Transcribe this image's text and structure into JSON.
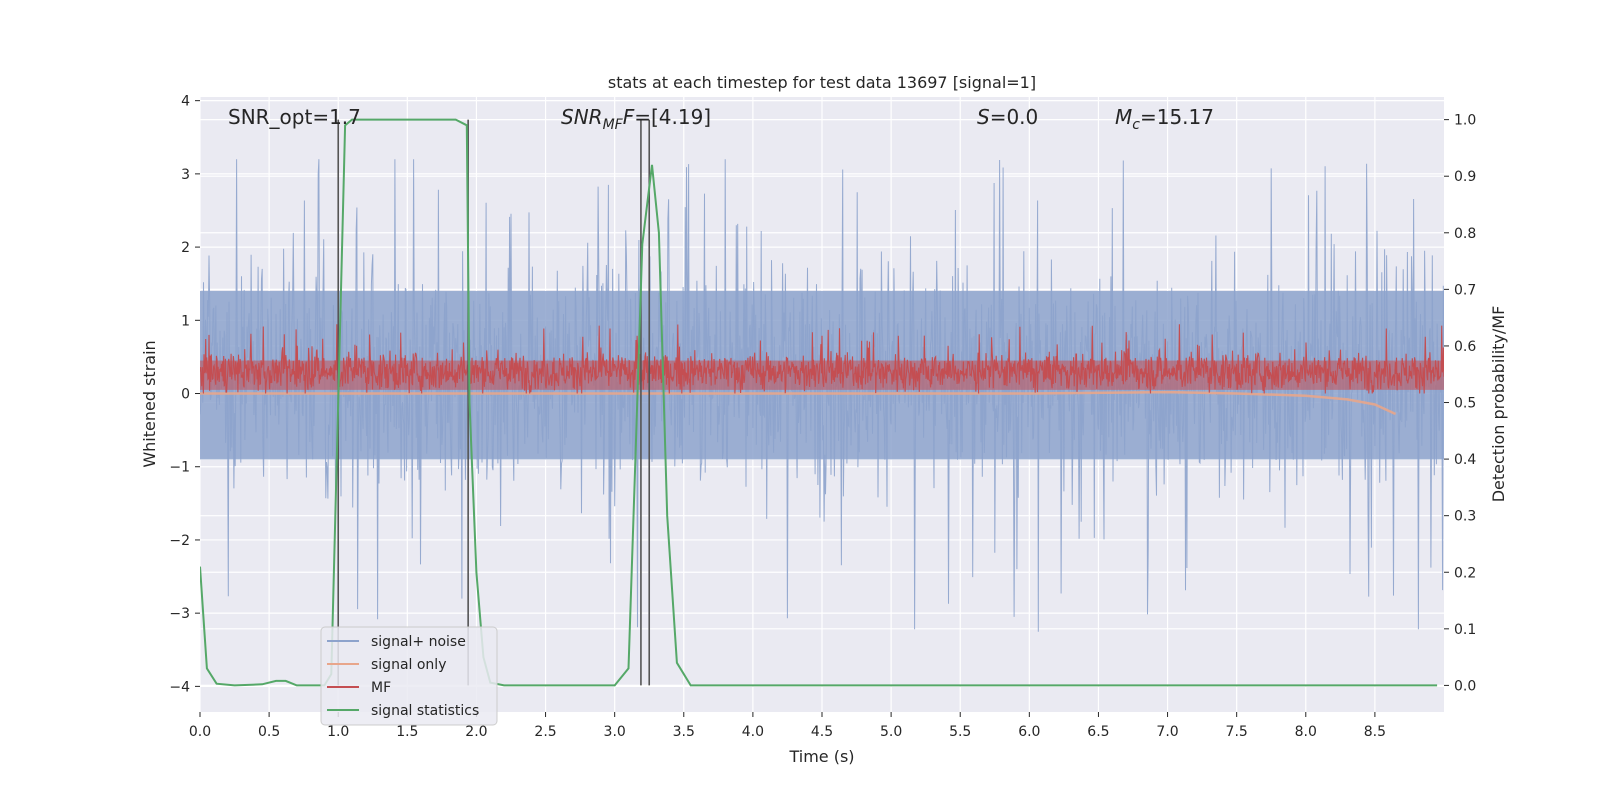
{
  "chart_data": {
    "type": "line",
    "title": "stats at each timestep for test data 13697 [signal=1]",
    "xlabel": "Time (s)",
    "ylabel_left": "Whitened strain",
    "ylabel_right": "Detection probability/MF",
    "xlim": [
      0.0,
      9.0
    ],
    "ylim_left": [
      -4.35,
      4.05
    ],
    "ylim_right": [
      -0.047,
      1.04
    ],
    "xticks": [
      "0.0",
      "0.5",
      "1.0",
      "1.5",
      "2.0",
      "2.5",
      "3.0",
      "3.5",
      "4.0",
      "4.5",
      "5.0",
      "5.5",
      "6.0",
      "6.5",
      "7.0",
      "7.5",
      "8.0",
      "8.5"
    ],
    "yticks_left": [
      "−4",
      "−3",
      "−2",
      "−1",
      "0",
      "1",
      "2",
      "3",
      "4"
    ],
    "yticks_right": [
      "0.0",
      "0.1",
      "0.2",
      "0.3",
      "0.4",
      "0.5",
      "0.6",
      "0.7",
      "0.8",
      "0.9",
      "1.0"
    ],
    "grid": true,
    "legend_position": "lower-left",
    "annotations": {
      "snr_opt": "SNR_opt=1.7",
      "snr_mf_main": "SNR",
      "snr_mf_sub": "MF",
      "snr_mf_tail": "=[4.19]",
      "s_main": "S",
      "s_tail": "=0.0",
      "mc_main": "M",
      "mc_sub": "c",
      "mc_tail": "=15.17"
    },
    "vertical_lines_x": [
      1.0,
      1.94,
      3.19,
      3.25
    ],
    "series": [
      {
        "name": "signal+ noise",
        "color": "#8da3cc",
        "axis": "left",
        "description_range": [
          -3.7,
          3.3
        ],
        "envelope": {
          "typical_upper": 1.4,
          "typical_lower": -0.9,
          "peak_upper": 3.2,
          "peak_lower": -3.7
        }
      },
      {
        "name": "signal only",
        "color": "#e8a68b",
        "axis": "left",
        "points": [
          [
            0.0,
            0.0
          ],
          [
            6.0,
            0.0
          ],
          [
            7.0,
            0.02
          ],
          [
            7.5,
            0.0
          ],
          [
            8.0,
            -0.03
          ],
          [
            8.3,
            -0.08
          ],
          [
            8.5,
            -0.15
          ],
          [
            8.65,
            -0.28
          ]
        ]
      },
      {
        "name": "MF",
        "color": "#c44e52",
        "axis": "left",
        "envelope": {
          "typical_upper": 0.6,
          "typical_lower": 0.0,
          "peak_upper": 1.0
        }
      },
      {
        "name": "signal statistics",
        "color": "#55a868",
        "axis": "right",
        "points": [
          [
            0.0,
            0.21
          ],
          [
            0.05,
            0.03
          ],
          [
            0.12,
            0.003
          ],
          [
            0.25,
            0.0
          ],
          [
            0.45,
            0.002
          ],
          [
            0.55,
            0.008
          ],
          [
            0.62,
            0.008
          ],
          [
            0.7,
            0.0
          ],
          [
            0.9,
            0.0
          ],
          [
            0.95,
            0.02
          ],
          [
            1.0,
            0.5
          ],
          [
            1.05,
            0.99
          ],
          [
            1.1,
            1.0
          ],
          [
            1.85,
            1.0
          ],
          [
            1.93,
            0.99
          ],
          [
            1.95,
            0.5
          ],
          [
            2.0,
            0.2
          ],
          [
            2.05,
            0.05
          ],
          [
            2.1,
            0.005
          ],
          [
            2.2,
            0.0
          ],
          [
            2.5,
            0.0
          ],
          [
            2.7,
            0.0
          ],
          [
            3.0,
            0.0
          ],
          [
            3.1,
            0.03
          ],
          [
            3.15,
            0.4
          ],
          [
            3.2,
            0.78
          ],
          [
            3.27,
            0.92
          ],
          [
            3.32,
            0.8
          ],
          [
            3.38,
            0.3
          ],
          [
            3.45,
            0.04
          ],
          [
            3.55,
            0.0
          ],
          [
            8.95,
            0.0
          ]
        ]
      }
    ]
  }
}
